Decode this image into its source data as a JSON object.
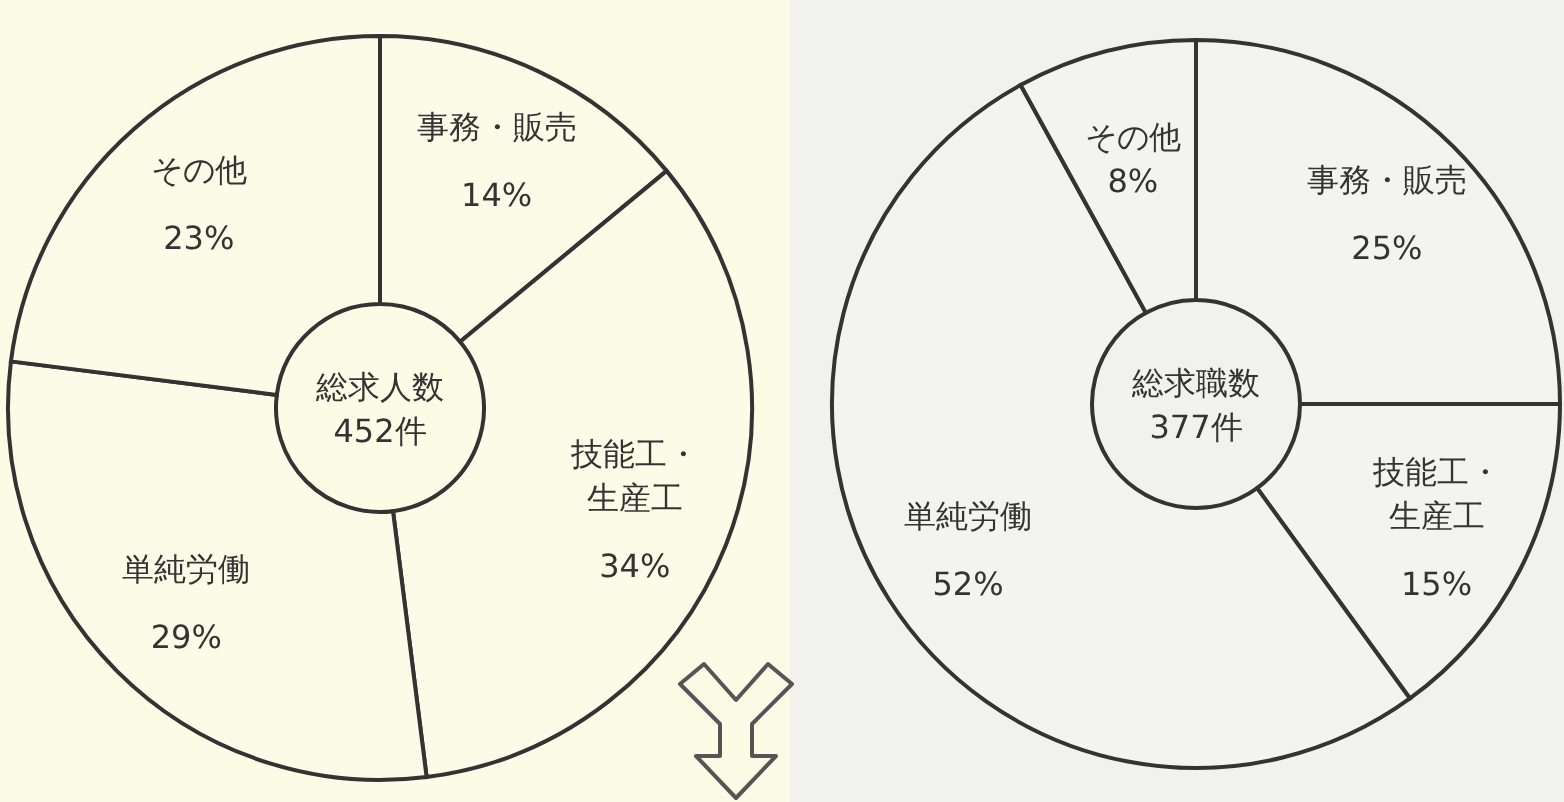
{
  "chart_data": [
    {
      "type": "donut",
      "title": "総求人数452件",
      "categories": [
        "事務・販売",
        "技能工・生産工",
        "単純労働",
        "その他"
      ],
      "values": [
        14,
        34,
        29,
        23
      ],
      "value_labels": [
        "14%",
        "34%",
        "29%",
        "23%"
      ],
      "colors": [
        "#fbfbe8",
        "#fbfbe8",
        "#fbfbe8",
        "#fbfbe8"
      ]
    },
    {
      "type": "donut",
      "title": "総求職数377件",
      "categories": [
        "事務・販売",
        "技能工・生産工",
        "単純労働",
        "その他"
      ],
      "values": [
        25,
        15,
        52,
        8
      ],
      "value_labels": [
        "25%",
        "15%",
        "52%",
        "8%"
      ],
      "colors": [
        "#f3f3f0",
        "#f3f3f0",
        "#f3f3f0",
        "#f3f3f0"
      ]
    }
  ]
}
